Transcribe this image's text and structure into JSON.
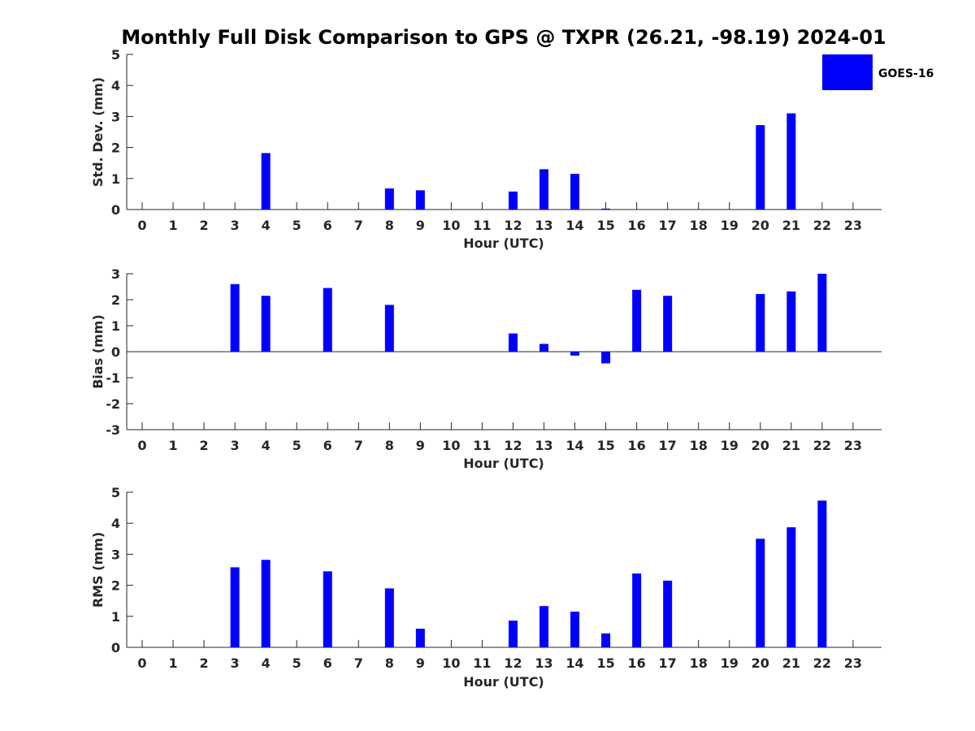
{
  "title": "Monthly Full Disk Comparison to GPS @ TXPR (26.21, -98.19) 2024-01",
  "legend": {
    "label": "GOES-16",
    "color": "#0000ff",
    "placement": "top-right"
  },
  "chart_data": [
    {
      "type": "bar",
      "xlabel": "Hour (UTC)",
      "ylabel": "Std. Dev. (mm)",
      "ylim": [
        0,
        5
      ],
      "yticks": [
        "0",
        "1",
        "2",
        "3",
        "4",
        "5"
      ],
      "categories": [
        "0",
        "1",
        "2",
        "3",
        "4",
        "5",
        "6",
        "7",
        "8",
        "9",
        "10",
        "11",
        "12",
        "13",
        "14",
        "15",
        "16",
        "17",
        "18",
        "19",
        "20",
        "21",
        "22",
        "23"
      ],
      "series": [
        {
          "name": "GOES-16",
          "values": [
            null,
            null,
            null,
            null,
            1.82,
            null,
            null,
            null,
            0.68,
            0.62,
            null,
            null,
            0.58,
            1.3,
            1.15,
            0.03,
            null,
            null,
            null,
            null,
            2.72,
            3.1,
            null,
            null
          ]
        }
      ]
    },
    {
      "type": "bar",
      "xlabel": "Hour (UTC)",
      "ylabel": "Bias (mm)",
      "ylim": [
        -3,
        3
      ],
      "yticks": [
        "-3",
        "-2",
        "-1",
        "0",
        "1",
        "2",
        "3"
      ],
      "categories": [
        "0",
        "1",
        "2",
        "3",
        "4",
        "5",
        "6",
        "7",
        "8",
        "9",
        "10",
        "11",
        "12",
        "13",
        "14",
        "15",
        "16",
        "17",
        "18",
        "19",
        "20",
        "21",
        "22",
        "23"
      ],
      "series": [
        {
          "name": "GOES-16",
          "values": [
            null,
            null,
            null,
            2.6,
            2.15,
            null,
            2.45,
            null,
            1.8,
            null,
            null,
            null,
            0.7,
            0.3,
            -0.15,
            -0.45,
            2.38,
            2.15,
            null,
            null,
            2.22,
            2.32,
            3.0,
            null
          ]
        }
      ]
    },
    {
      "type": "bar",
      "xlabel": "Hour (UTC)",
      "ylabel": "RMS (mm)",
      "ylim": [
        0,
        5
      ],
      "yticks": [
        "0",
        "1",
        "2",
        "3",
        "4",
        "5"
      ],
      "categories": [
        "0",
        "1",
        "2",
        "3",
        "4",
        "5",
        "6",
        "7",
        "8",
        "9",
        "10",
        "11",
        "12",
        "13",
        "14",
        "15",
        "16",
        "17",
        "18",
        "19",
        "20",
        "21",
        "22",
        "23"
      ],
      "series": [
        {
          "name": "GOES-16",
          "values": [
            null,
            null,
            null,
            2.58,
            2.82,
            null,
            2.45,
            null,
            1.9,
            0.6,
            null,
            null,
            0.86,
            1.33,
            1.15,
            0.45,
            2.38,
            2.15,
            null,
            null,
            3.5,
            3.87,
            4.73,
            null
          ]
        }
      ]
    }
  ]
}
